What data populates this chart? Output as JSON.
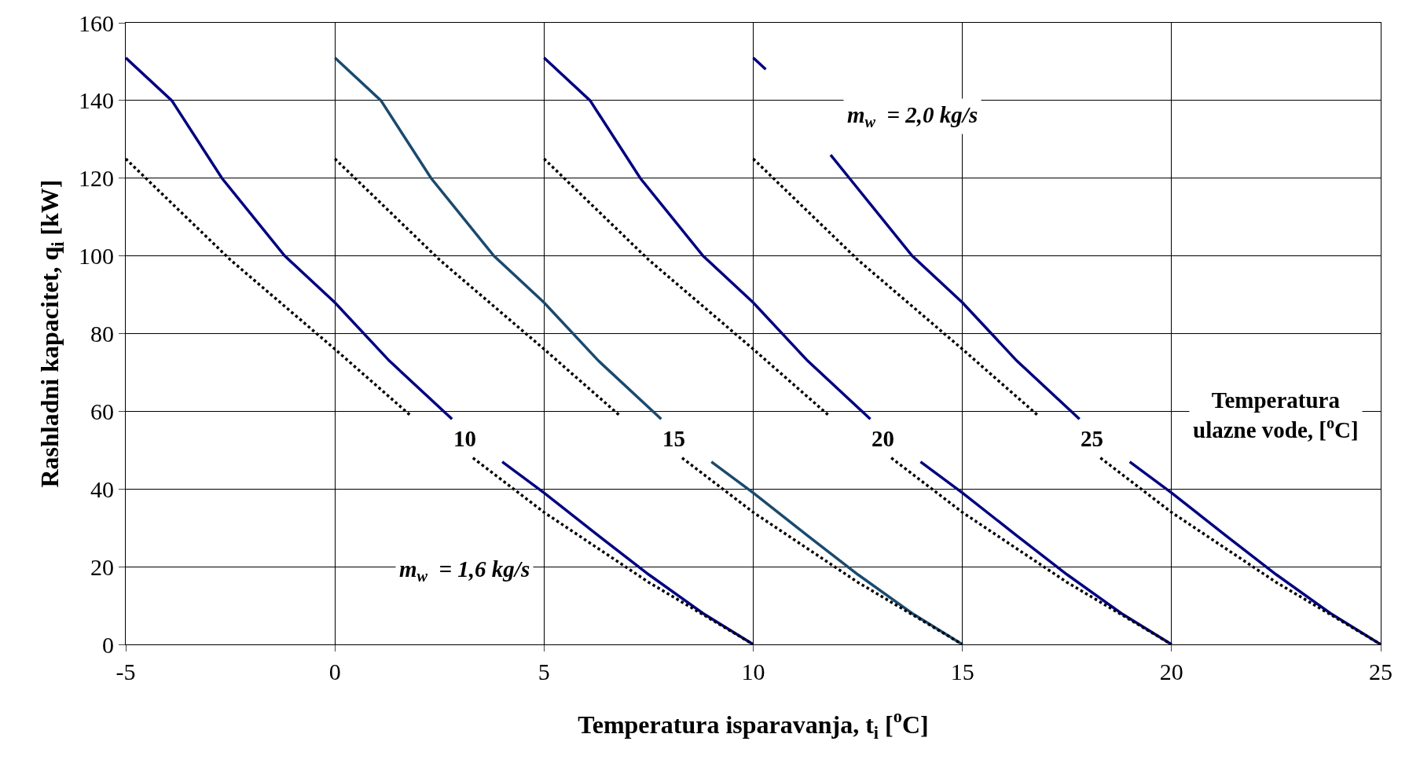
{
  "chart_data": {
    "type": "line",
    "xlabel": "Temperatura isparavanja, t$_{i}$ [$^{o}$C]",
    "ylabel": "Rashladni kapacitet, q$_{i}$ [kW]",
    "xlim": [
      -5,
      25
    ],
    "xticks": [
      -5,
      0,
      5,
      10,
      15,
      20,
      25
    ],
    "ylim": [
      0,
      160
    ],
    "yticks": [
      0,
      20,
      40,
      60,
      80,
      100,
      120,
      140,
      160
    ],
    "grid": true,
    "marker": "none",
    "series": [
      {
        "color": "#000080",
        "line_style": "solid",
        "x": [
          -5,
          -3.9,
          -2.7,
          -1.2,
          0,
          1.3,
          2.8,
          3.4,
          4,
          5,
          6.3,
          7.5,
          8.8,
          10
        ],
        "values": [
          151,
          140,
          120,
          100,
          88,
          73,
          58,
          null,
          47,
          39,
          28,
          18,
          8,
          0
        ]
      },
      {
        "color": "#1a4a6e",
        "line_style": "solid",
        "x": [
          0,
          1.1,
          2.3,
          3.8,
          5,
          6.3,
          7.8,
          8.4,
          9,
          10,
          11.3,
          12.5,
          13.8,
          15
        ],
        "values": [
          151,
          140,
          120,
          100,
          88,
          73,
          58,
          null,
          47,
          39,
          28,
          18,
          8,
          0
        ]
      },
      {
        "color": "#000080",
        "line_style": "solid",
        "x": [
          5,
          6.1,
          7.3,
          8.8,
          10,
          11.3,
          12.8,
          13.4,
          14,
          15,
          16.3,
          17.5,
          18.8,
          20
        ],
        "values": [
          151,
          140,
          120,
          100,
          88,
          73,
          58,
          null,
          47,
          39,
          28,
          18,
          8,
          0
        ]
      },
      {
        "color": "#000080",
        "line_style": "solid",
        "x": [
          10,
          10.3,
          11,
          11.85,
          12.3,
          13.8,
          15,
          16.3,
          17.8,
          18.4,
          19,
          20,
          21.3,
          22.5,
          23.8,
          25
        ],
        "values": [
          151,
          148,
          null,
          126,
          120,
          100,
          88,
          73,
          58,
          null,
          47,
          39,
          28,
          18,
          8,
          0
        ]
      },
      {
        "color": "#000000",
        "line_style": "dotted",
        "x": [
          -5,
          -2.5,
          0,
          1.8,
          2.5,
          3.3,
          5,
          7.5,
          10
        ],
        "values": [
          125,
          99,
          76,
          59,
          null,
          48,
          34,
          16,
          0
        ]
      },
      {
        "color": "#000000",
        "line_style": "dotted",
        "x": [
          0,
          2.5,
          5,
          6.8,
          7.5,
          8.3,
          10,
          12.5,
          15
        ],
        "values": [
          125,
          99,
          76,
          59,
          null,
          48,
          34,
          16,
          0
        ]
      },
      {
        "color": "#000000",
        "line_style": "dotted",
        "x": [
          5,
          7.5,
          10,
          11.8,
          12.5,
          13.3,
          15,
          17.5,
          20
        ],
        "values": [
          125,
          99,
          76,
          59,
          null,
          48,
          34,
          16,
          0
        ]
      },
      {
        "color": "#000000",
        "line_style": "dotted",
        "x": [
          10,
          12.5,
          15,
          16.8,
          17.5,
          18.3,
          20,
          22.5,
          25
        ],
        "values": [
          125,
          99,
          76,
          59,
          null,
          48,
          34,
          16,
          0
        ]
      }
    ],
    "annotations": [
      {
        "text": "10",
        "x": 3.1,
        "y": 53
      },
      {
        "text": "15",
        "x": 8.1,
        "y": 53
      },
      {
        "text": "20",
        "x": 13.1,
        "y": 53
      },
      {
        "text": "25",
        "x": 18.1,
        "y": 53
      },
      "Temperatura\nulazne vode, [$^{o}$C]",
      "m$_{w}$  = 2,0 kg/s",
      "m$_{w}$  = 1,6 kg/s"
    ]
  }
}
